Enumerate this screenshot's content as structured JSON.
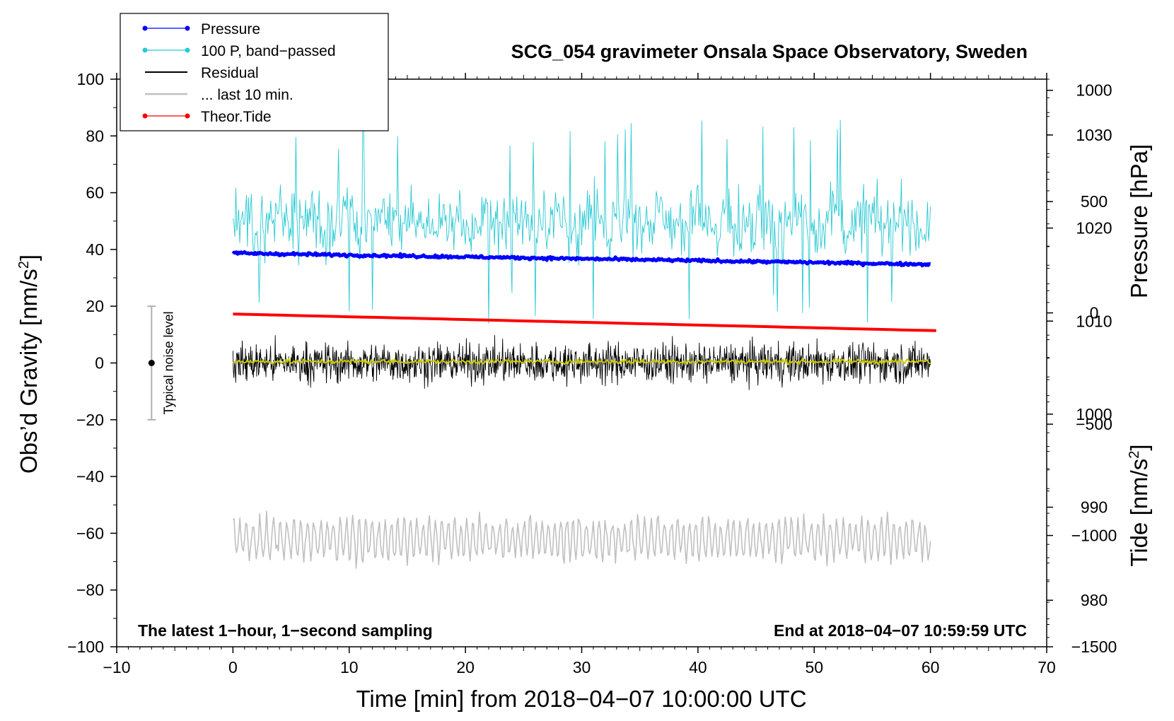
{
  "chart_data": {
    "type": "line",
    "title": "SCG_054 gravimeter Onsala Space Observatory, Sweden",
    "xlabel": "Time [min] from 2018−04−07 10:00:00 UTC",
    "ylabel_left": "Obs’d Gravity [nm/s",
    "ylabel_left_sup": "2",
    "ylabel_left_end": "]",
    "ylabel_right_pressure": "Pressure [hPa]",
    "ylabel_right_tide": "Tide [nm/s",
    "ylabel_right_tide_sup": "2",
    "ylabel_right_tide_end": "]",
    "xlim": [
      -10,
      70
    ],
    "ylim": [
      -100,
      100
    ],
    "pressure_axis": {
      "min": 975,
      "max": 1036,
      "ticks": [
        "980",
        "990",
        "1000",
        "1010",
        "1020",
        "1030"
      ]
    },
    "tide_axis": {
      "min": -1500,
      "max": 1050,
      "ticks": [
        "−1500",
        "−1000",
        "−500",
        "0",
        "500",
        "1000"
      ]
    },
    "x_ticks": [
      "−10",
      "0",
      "10",
      "20",
      "30",
      "40",
      "50",
      "60",
      "70"
    ],
    "y_ticks": [
      "−100",
      "−80",
      "−60",
      "−40",
      "−20",
      "0",
      "20",
      "40",
      "60",
      "80",
      "100"
    ],
    "legend": [
      {
        "label": "Pressure",
        "color": "#0000ff",
        "marker": true
      },
      {
        "label": "100 P, band−passed",
        "color": "#29c9d3",
        "marker": true
      },
      {
        "label": "Residual",
        "color": "#000000",
        "marker": false
      },
      {
        "label": "... last 10 min.",
        "color": "#c0c0c0",
        "marker": false
      },
      {
        "label": "Theor.Tide",
        "color": "#ff0000",
        "marker": true
      }
    ],
    "annotations": {
      "left": "The latest 1−hour, 1−second sampling",
      "right": "End at 2018−04−07 10:59:59 UTC",
      "noise": "Typical noise level"
    },
    "noise_bar": {
      "x": -7,
      "center": 0,
      "low": -20,
      "high": 20
    },
    "series": [
      {
        "name": "Pressure",
        "axis": "pressure",
        "color": "#0000ff",
        "start": [
          0,
          1017.3
        ],
        "end": [
          60,
          1016.1
        ],
        "noise": 0.3
      },
      {
        "name": "100 P, band−passed",
        "axis": "gravity",
        "color": "#29c9d3",
        "center": 50,
        "amplitude": 14,
        "range_min": 13,
        "range_max": 89
      },
      {
        "name": "Residual",
        "axis": "gravity",
        "color": "#000000",
        "center": 0,
        "amplitude": 8,
        "range_min": -19,
        "range_max": 19
      },
      {
        "name": "Residual (smoothed)",
        "axis": "gravity",
        "color": "#c8c800",
        "center": 0.5,
        "amplitude": 1
      },
      {
        "name": "... last 10 min.",
        "axis": "gravity",
        "color": "#c0c0c0",
        "center": -62,
        "amplitude": 7,
        "range_min": -78,
        "range_max": -44
      },
      {
        "name": "Theor.Tide",
        "axis": "tide",
        "color": "#ff0000",
        "start": [
          0,
          -5
        ],
        "end": [
          60.5,
          -80
        ]
      }
    ]
  }
}
